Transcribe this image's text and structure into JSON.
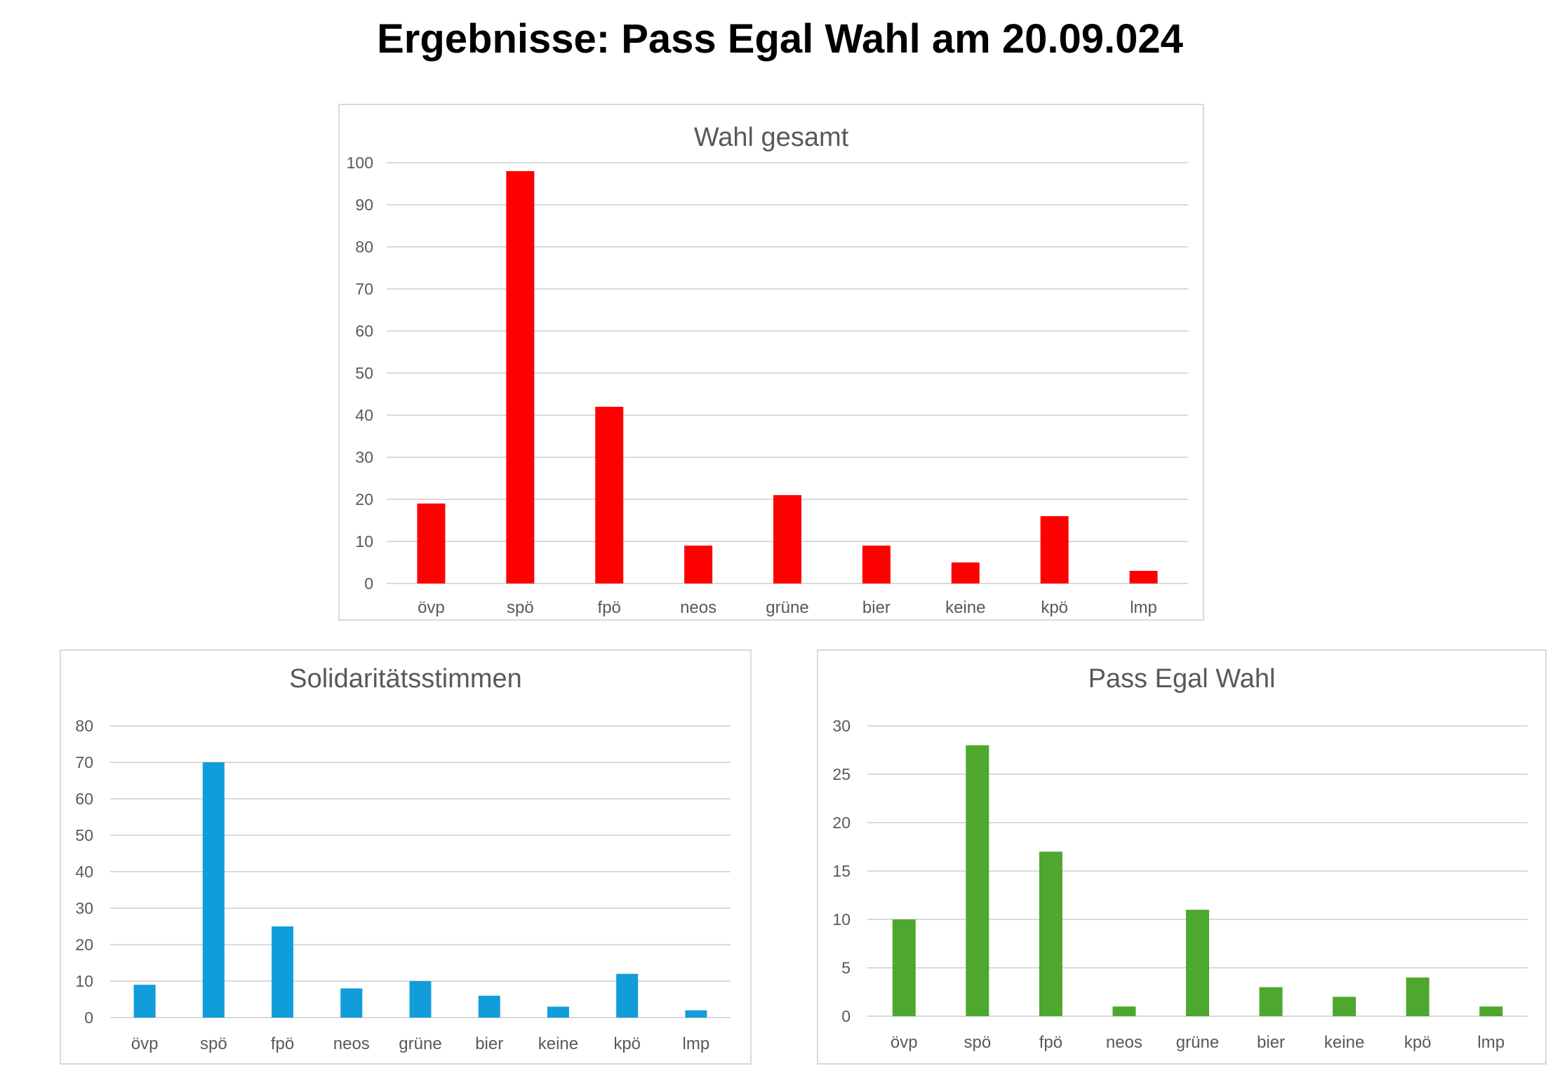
{
  "page": {
    "title": "Ergebnisse: Pass Egal Wahl am 20.09.024"
  },
  "chart_data": [
    {
      "type": "bar",
      "title": "Wahl gesamt",
      "categories": [
        "övp",
        "spö",
        "fpö",
        "neos",
        "grüne",
        "bier",
        "keine",
        "kpö",
        "lmp"
      ],
      "values": [
        19,
        98,
        42,
        9,
        21,
        9,
        5,
        16,
        3
      ],
      "ylim": [
        0,
        100
      ],
      "yticks": [
        0,
        10,
        20,
        30,
        40,
        50,
        60,
        70,
        80,
        90,
        100
      ],
      "color": "#ff0000",
      "grid": true
    },
    {
      "type": "bar",
      "title": "Solidaritätsstimmen",
      "categories": [
        "övp",
        "spö",
        "fpö",
        "neos",
        "grüne",
        "bier",
        "keine",
        "kpö",
        "lmp"
      ],
      "values": [
        9,
        70,
        25,
        8,
        10,
        6,
        3,
        12,
        2
      ],
      "ylim": [
        0,
        80
      ],
      "yticks": [
        0,
        10,
        20,
        30,
        40,
        50,
        60,
        70,
        80
      ],
      "color": "#119dd9",
      "grid": true
    },
    {
      "type": "bar",
      "title": "Pass Egal Wahl",
      "categories": [
        "övp",
        "spö",
        "fpö",
        "neos",
        "grüne",
        "bier",
        "keine",
        "kpö",
        "lmp"
      ],
      "values": [
        10,
        28,
        17,
        1,
        11,
        3,
        2,
        4,
        1
      ],
      "ylim": [
        0,
        30
      ],
      "yticks": [
        0,
        5,
        10,
        15,
        20,
        25,
        30
      ],
      "color": "#4ea72e",
      "grid": true
    }
  ]
}
